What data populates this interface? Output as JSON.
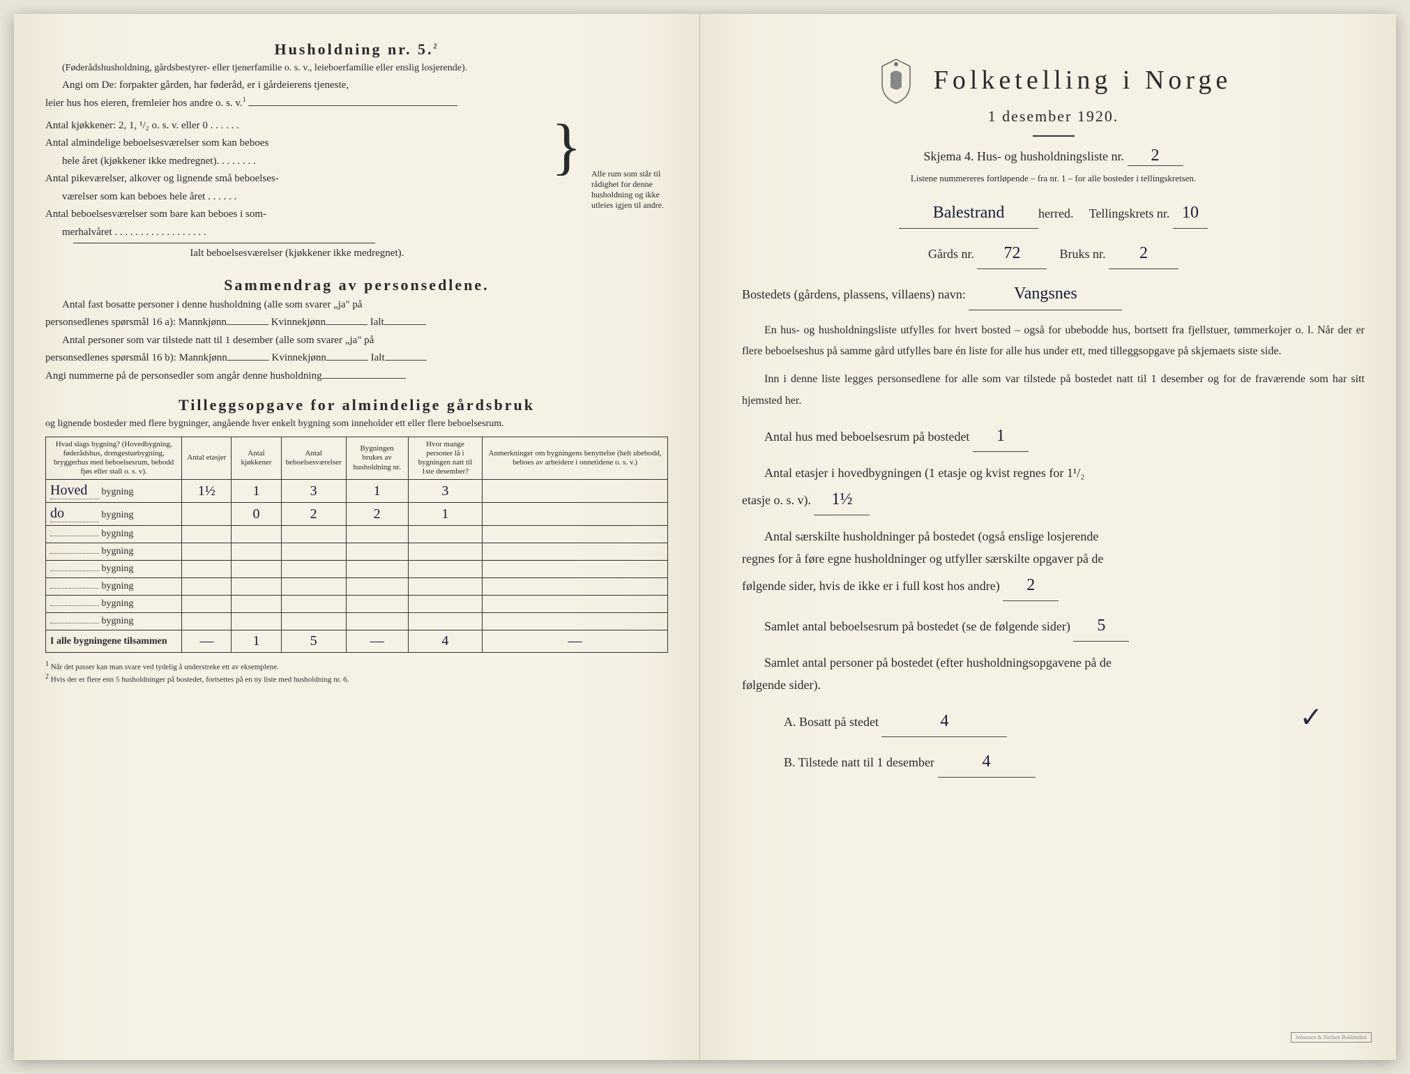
{
  "left": {
    "husholdning_title": "Husholdning nr. 5.",
    "husholdning_sup": "2",
    "husholdning_paren": "(Føderådshusholdning, gårdsbestyrer- eller tjenerfamilie o. s. v., leieboerfamilie eller enslig losjerende).",
    "angi_line1": "Angi om De: forpakter gården, har føderåd, er i gårdeierens tjeneste,",
    "angi_line2": "leier hus hos eieren, fremleier hos andre o. s. v.",
    "angi_sup": "1",
    "kjokken_line": "Antal kjøkkener: 2, 1, ¹/₂ o. s. v. eller 0 . . . . . .",
    "alm_line1": "Antal almindelige beboelsesværelser som kan beboes",
    "alm_line2": "hele året (kjøkkener ikke medregnet). . . . . . . .",
    "pike_line1": "Antal pikeværelser, alkover og lignende små beboelses-",
    "pike_line2": "værelser som kan beboes hele året . . . . . .",
    "sommer_line1": "Antal beboelsesværelser som bare kan beboes i som-",
    "sommer_line2": "merhalvåret . . . . . . . . . . . . . . . . . .",
    "ialt_line": "Ialt beboelsesværelser (kjøkkener ikke medregnet).",
    "brace_text": "Alle rum som står til rådighet for denne husholdning og ikke utleies igjen til andre.",
    "sammendrag_title": "Sammendrag av personsedlene.",
    "sammen_l1": "Antal fast bosatte personer i denne husholdning (alle som svarer „ja\" på",
    "sammen_l2": "personsedlenes spørsmål 16 a): Mannkjønn",
    "sammen_kv": "Kvinnekjønn",
    "sammen_ialt": "Ialt",
    "sammen_l3": "Antal personer som var tilstede natt til 1 desember (alle som svarer „ja\" på",
    "sammen_l4": "personsedlenes spørsmål 16 b): Mannkjønn",
    "angi_num": "Angi nummerne på de personsedler som angår denne husholdning",
    "tillegg_title": "Tilleggsopgave for almindelige gårdsbruk",
    "tillegg_sub": "og lignende bosteder med flere bygninger, angående hver enkelt bygning som inneholder ett eller flere beboelsesrum.",
    "table": {
      "col1": "Hvad slags bygning?\n(Hovedbygning, føderådshus, drengestuebygning, bryggerhus med beboelsesrum, bebodd fjøs eller stall o. s. v).",
      "col2": "Antal etasjer",
      "col3": "Antal kjøkkener",
      "col4": "Antal beboelsesværelser",
      "col5": "Bygningen brukes av husholdning nr.",
      "col6": "Hvor mange personer lå i bygningen natt til 1ste desember?",
      "col7": "Anmerkninger om bygningens benyttelse (helt ubebodd, beboes av arbeidere i onnetidene o. s. v.)",
      "rows": [
        {
          "prefix": "Hoved",
          "etasjer": "1½",
          "kjokkener": "1",
          "vaerelser": "3",
          "hushold": "1",
          "personer": "3",
          "anm": ""
        },
        {
          "prefix": "do",
          "etasjer": "",
          "kjokkener": "0",
          "vaerelser": "2",
          "hushold": "2",
          "personer": "1",
          "anm": ""
        },
        {
          "prefix": "",
          "etasjer": "",
          "kjokkener": "",
          "vaerelser": "",
          "hushold": "",
          "personer": "",
          "anm": ""
        },
        {
          "prefix": "",
          "etasjer": "",
          "kjokkener": "",
          "vaerelser": "",
          "hushold": "",
          "personer": "",
          "anm": ""
        },
        {
          "prefix": "",
          "etasjer": "",
          "kjokkener": "",
          "vaerelser": "",
          "hushold": "",
          "personer": "",
          "anm": ""
        },
        {
          "prefix": "",
          "etasjer": "",
          "kjokkener": "",
          "vaerelser": "",
          "hushold": "",
          "personer": "",
          "anm": ""
        },
        {
          "prefix": "",
          "etasjer": "",
          "kjokkener": "",
          "vaerelser": "",
          "hushold": "",
          "personer": "",
          "anm": ""
        },
        {
          "prefix": "",
          "etasjer": "",
          "kjokkener": "",
          "vaerelser": "",
          "hushold": "",
          "personer": "",
          "anm": ""
        }
      ],
      "total_label": "I alle bygningene tilsammen",
      "total": {
        "etasjer": "—",
        "kjokkener": "1",
        "vaerelser": "5",
        "hushold": "—",
        "personer": "4",
        "anm": "—"
      }
    },
    "footnote1": "Når det passer kan man svare ved tydelig å understreke ett av eksemplene.",
    "footnote2": "Hvis der er flere enn 5 husholdninger på bostedet, fortsettes på en ny liste med husholdning nr. 6."
  },
  "right": {
    "title": "Folketelling i Norge",
    "date": "1 desember 1920.",
    "skjema": "Skjema 4. Hus- og husholdningsliste nr.",
    "skjema_nr": "2",
    "listene": "Listene nummereres fortløpende – fra nr. 1 – for alle bosteder i tellingskretsen.",
    "herred_value": "Balestrand",
    "herred_suffix": "herred.",
    "tellingskrets_label": "Tellingskrets nr.",
    "tellingskrets_nr": "10",
    "gards_label": "Gårds nr.",
    "gards_nr": "72",
    "bruks_label": "Bruks nr.",
    "bruks_nr": "2",
    "bosted_label": "Bostedets (gårdens, plassens, villaens) navn:",
    "bosted_value": "Vangsnes",
    "para1": "En hus- og husholdningsliste utfylles for hvert bosted – også for ubebodde hus, bortsett fra fjellstuer, tømmerkojer o. l. Når der er flere beboelseshus på samme gård utfylles bare én liste for alle hus under ett, med tilleggsopgave på skjemaets siste side.",
    "para2": "Inn i denne liste legges personsedlene for alle som var tilstede på bostedet natt til 1 desember og for de fraværende som har sitt hjemsted her.",
    "antal_hus_label": "Antal hus med beboelsesrum på bostedet",
    "antal_hus": "1",
    "etasjer_label1": "Antal etasjer i hovedbygningen (1 etasje og kvist regnes for 1¹/₂",
    "etasjer_label2": "etasje o. s. v).",
    "etasjer_val": "1½",
    "saerskilte_l1": "Antal særskilte husholdninger på bostedet (også enslige losjerende",
    "saerskilte_l2": "regnes for å føre egne husholdninger og utfyller særskilte opgaver på de",
    "saerskilte_l3": "følgende sider, hvis de ikke er i full kost hos andre)",
    "saerskilte_val": "2",
    "samlet_rum_label": "Samlet antal beboelsesrum på bostedet (se de følgende sider)",
    "samlet_rum": "5",
    "samlet_pers_l1": "Samlet antal personer på bostedet (efter husholdningsopgavene på de",
    "samlet_pers_l2": "følgende sider).",
    "bosatt_label": "A. Bosatt på stedet",
    "bosatt_val": "4",
    "tilstede_label": "B. Tilstede natt til 1 desember",
    "tilstede_val": "4",
    "stamp": "Johansen & Nielsen Bokbinderi"
  }
}
